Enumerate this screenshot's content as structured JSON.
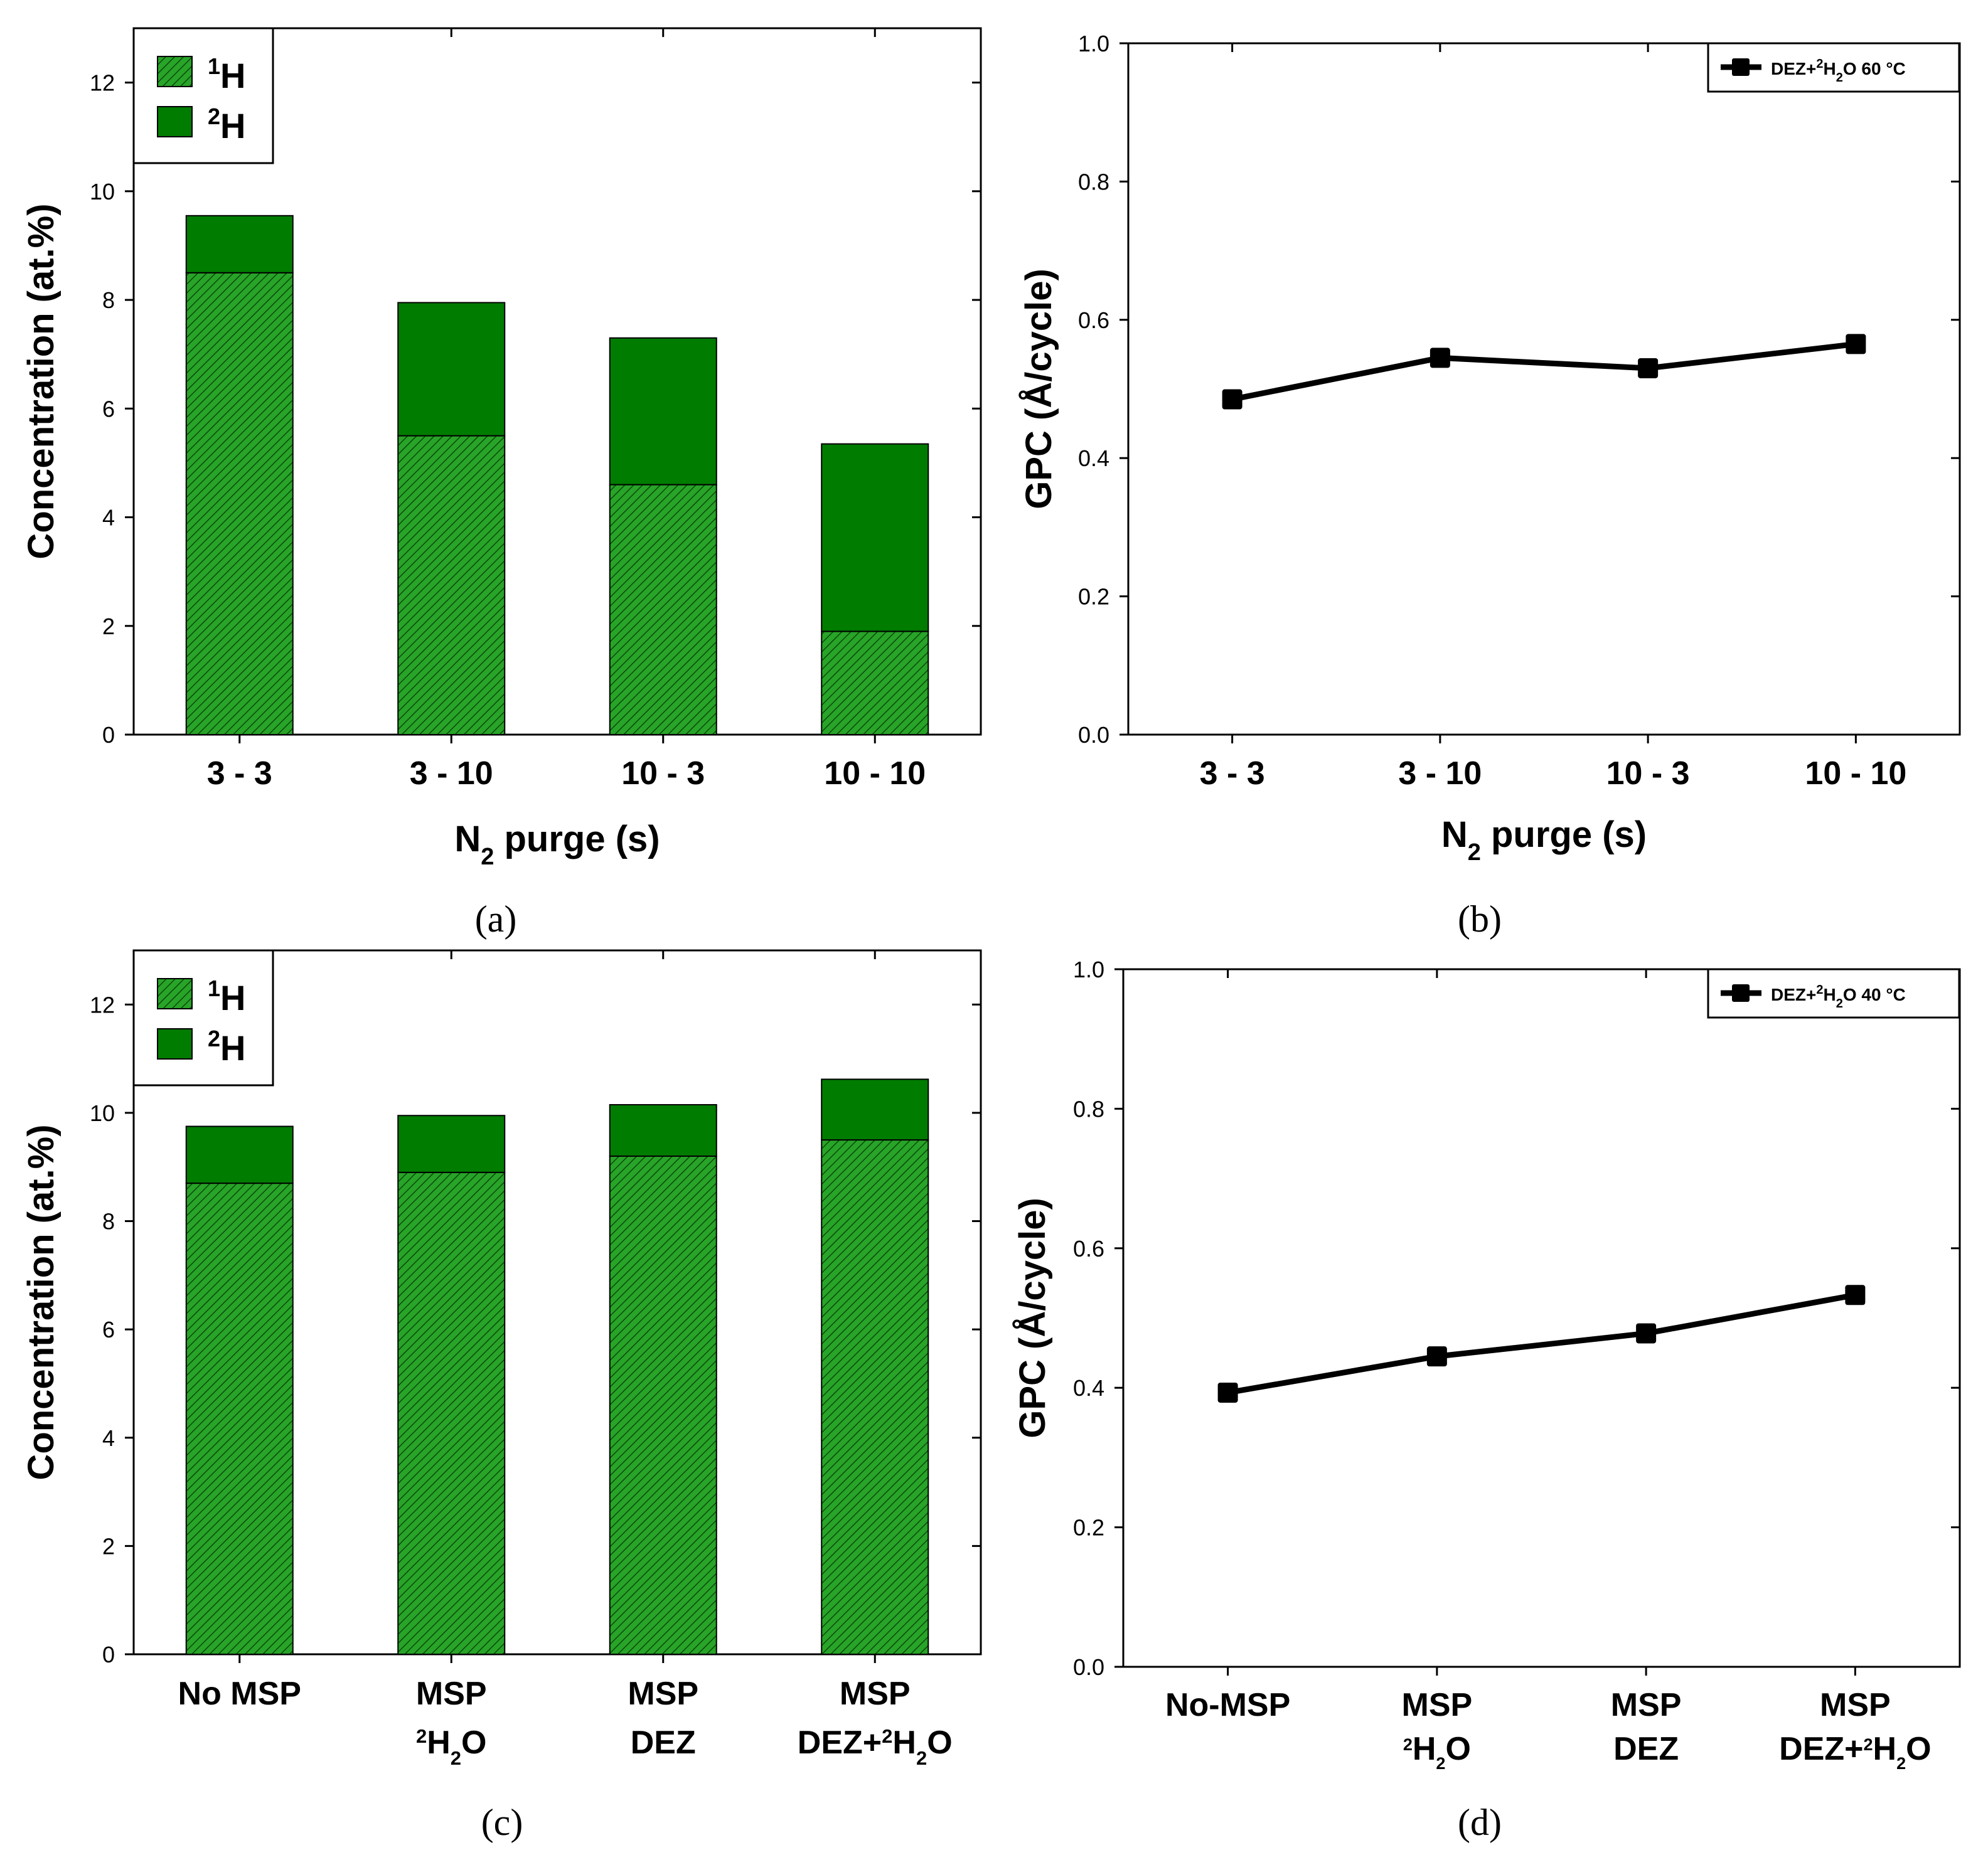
{
  "chart_data": [
    {
      "id": "a",
      "type": "bar",
      "stacked": true,
      "caption": "(a)",
      "categories": [
        "3 - 3",
        "3 - 10",
        "10 - 3",
        "10 - 10"
      ],
      "series": [
        {
          "name": "1H",
          "sup": "1",
          "base": "H",
          "color": "#28a428",
          "pattern": "hatched",
          "values": [
            8.5,
            5.5,
            4.6,
            1.9
          ]
        },
        {
          "name": "2H",
          "sup": "2",
          "base": "H",
          "color": "#007c00",
          "pattern": "solid",
          "values": [
            1.05,
            2.45,
            2.7,
            3.45
          ]
        }
      ],
      "ylabel": "Concentration (at.%)",
      "xlabel_parts": [
        "N",
        "2",
        " purge (s)"
      ],
      "ylim": [
        0,
        13
      ],
      "yticks": [
        0,
        2,
        4,
        6,
        8,
        10,
        12
      ],
      "legend": "top-left"
    },
    {
      "id": "b",
      "type": "line",
      "caption": "(b)",
      "categories": [
        "3 - 3",
        "3 - 10",
        "10 - 3",
        "10 - 10"
      ],
      "series": [
        {
          "name": "DEZ+2H2O 60 °C",
          "label_parts": [
            "DEZ+",
            "2",
            "H",
            "2",
            "O 60 °C"
          ],
          "values": [
            0.485,
            0.545,
            0.53,
            0.565
          ],
          "marker": "square",
          "color": "#000000"
        }
      ],
      "ylabel": "GPC (Å/cycle)",
      "xlabel_parts": [
        "N",
        "2",
        " purge (s)"
      ],
      "ylim": [
        0,
        1.0
      ],
      "yticks": [
        "0.0",
        "0.2",
        "0.4",
        "0.6",
        "0.8",
        "1.0"
      ],
      "legend": "top-right"
    },
    {
      "id": "c",
      "type": "bar",
      "stacked": true,
      "caption": "(c)",
      "categories": [
        {
          "line1": "No MSP",
          "line2": ""
        },
        {
          "line1": "MSP",
          "line2": "2H2O"
        },
        {
          "line1": "MSP",
          "line2": "DEZ"
        },
        {
          "line1": "MSP",
          "line2": "DEZ+2H2O"
        }
      ],
      "series": [
        {
          "name": "1H",
          "sup": "1",
          "base": "H",
          "color": "#28a428",
          "pattern": "hatched",
          "values": [
            8.7,
            8.9,
            9.2,
            9.5
          ]
        },
        {
          "name": "2H",
          "sup": "2",
          "base": "H",
          "color": "#007c00",
          "pattern": "solid",
          "values": [
            1.05,
            1.05,
            0.95,
            1.12
          ]
        }
      ],
      "ylabel": "Concentration (at.%)",
      "xlabel": "",
      "ylim": [
        0,
        13
      ],
      "yticks": [
        0,
        2,
        4,
        6,
        8,
        10,
        12
      ],
      "legend": "top-left"
    },
    {
      "id": "d",
      "type": "line",
      "caption": "(d)",
      "categories": [
        {
          "line1": "No-MSP",
          "line2": ""
        },
        {
          "line1": "MSP",
          "line2": "2H2O"
        },
        {
          "line1": "MSP",
          "line2": "DEZ"
        },
        {
          "line1": "MSP",
          "line2": "DEZ+2H2O"
        }
      ],
      "series": [
        {
          "name": "DEZ+2H2O 40 °C",
          "label_parts": [
            "DEZ+",
            "2",
            "H",
            "2",
            "O 40 °C"
          ],
          "values": [
            0.393,
            0.445,
            0.478,
            0.533
          ],
          "marker": "square",
          "color": "#000000"
        }
      ],
      "ylabel": "GPC (Å/cycle)",
      "xlabel": "",
      "ylim": [
        0,
        1.0
      ],
      "yticks": [
        "0.0",
        "0.2",
        "0.4",
        "0.6",
        "0.8",
        "1.0"
      ],
      "legend": "top-right"
    }
  ]
}
